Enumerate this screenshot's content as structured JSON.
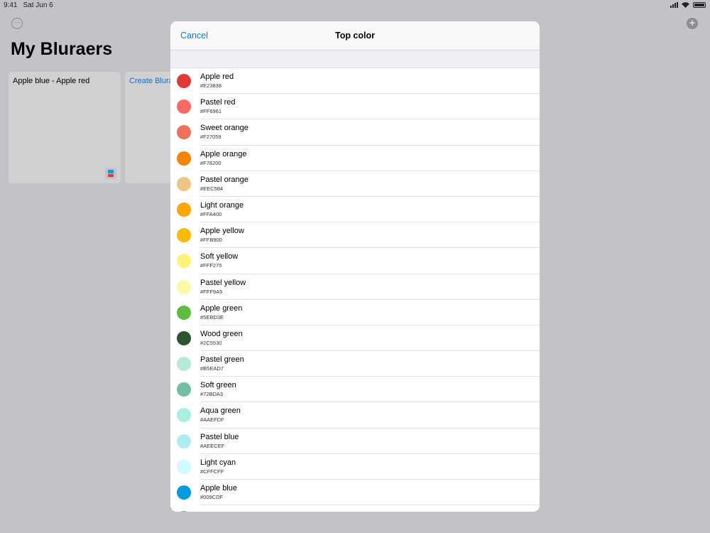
{
  "status": {
    "time": "9:41",
    "date": "Sat Jun 6"
  },
  "page": {
    "title": "My Bluraers",
    "more_icon": "ellipsis-circle-icon",
    "add_icon": "plus-circle-icon"
  },
  "cards": [
    {
      "title": "Apple blue - Apple red",
      "swatch": [
        "#009CDF",
        "#E23838"
      ]
    },
    {
      "title": "Create Blura"
    }
  ],
  "modal": {
    "cancel": "Cancel",
    "title": "Top color",
    "colors": [
      {
        "name": "Apple red",
        "hex": "#E23838"
      },
      {
        "name": "Pastel red",
        "hex": "#FF6961"
      },
      {
        "name": "Sweet orange",
        "hex": "#F27059"
      },
      {
        "name": "Apple orange",
        "hex": "#F78200"
      },
      {
        "name": "Pastel orange",
        "hex": "#EEC584"
      },
      {
        "name": "Light orange",
        "hex": "#FFA400"
      },
      {
        "name": "Apple yellow",
        "hex": "#FFB900"
      },
      {
        "name": "Soft yellow",
        "hex": "#FFF275"
      },
      {
        "name": "Pastel yellow",
        "hex": "#FFF9A5"
      },
      {
        "name": "Apple green",
        "hex": "#5EBD3E"
      },
      {
        "name": "Wood green",
        "hex": "#2C5530"
      },
      {
        "name": "Pastel green",
        "hex": "#B5EAD7"
      },
      {
        "name": "Soft green",
        "hex": "#72BDA3"
      },
      {
        "name": "Aqua green",
        "hex": "#AAEFDF"
      },
      {
        "name": "Pastel blue",
        "hex": "#AEECEF"
      },
      {
        "name": "Light cyan",
        "hex": "#CFFCFF"
      },
      {
        "name": "Apple blue",
        "hex": "#009CDF"
      }
    ]
  }
}
